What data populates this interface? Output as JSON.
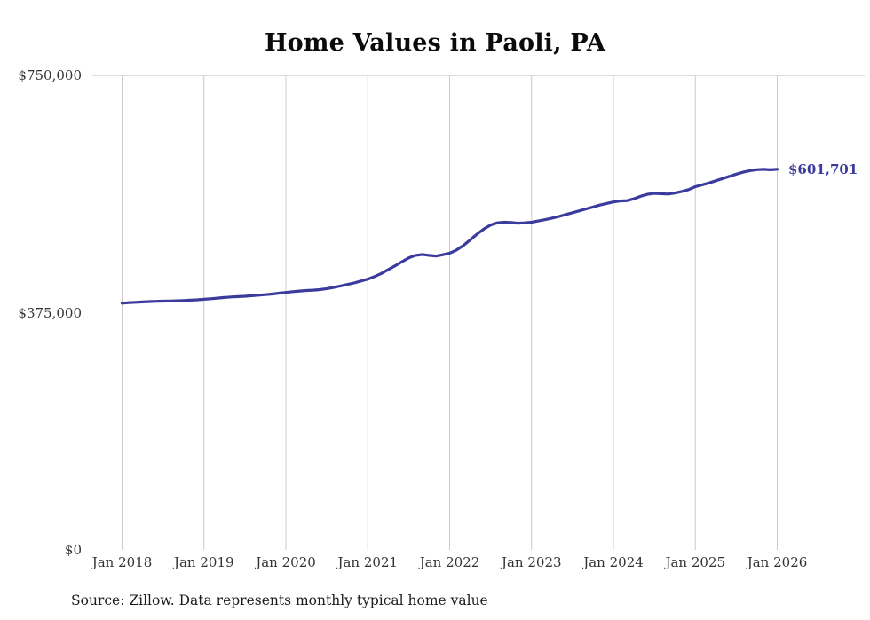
{
  "chart_data": {
    "type": "line",
    "title": "Home Values in Paoli, PA",
    "source_note": "Source: Zillow. Data represents monthly typical home value",
    "frequency": "monthly",
    "grid": "vertical",
    "legend": "none",
    "ylim": [
      0,
      750000
    ],
    "y_ticks": [
      {
        "label": "$0",
        "value": 0
      },
      {
        "label": "$375,000",
        "value": 375000
      },
      {
        "label": "$750,000",
        "value": 750000
      }
    ],
    "x_ticks": [
      "Jan 2018",
      "Jan 2019",
      "Jan 2020",
      "Jan 2021",
      "Jan 2022",
      "Jan 2023",
      "Jan 2024",
      "Jan 2025",
      "Jan 2026"
    ],
    "end_label": "$601,701",
    "end_value": 601701,
    "colors": {
      "line": "#3b3b9d",
      "gridline": "#cccccc",
      "top_line": "#bbbbbb",
      "tick_text": "#333333"
    },
    "series": [
      {
        "name": "Typical home value",
        "color": "#3b3b9d",
        "x_start": "Jan 2018",
        "x_end": "Jan 2026",
        "values": [
          390000,
          390800,
          391400,
          392000,
          392500,
          393000,
          393200,
          393500,
          393800,
          394200,
          394700,
          395300,
          396100,
          397000,
          398000,
          399000,
          399800,
          400400,
          401000,
          401800,
          402600,
          403500,
          404500,
          405800,
          407000,
          408200,
          409200,
          410000,
          410600,
          411500,
          413000,
          415000,
          417200,
          419600,
          422000,
          425000,
          428000,
          432000,
          437000,
          443000,
          449000,
          455500,
          461500,
          465500,
          467000,
          465500,
          464500,
          466500,
          469000,
          474000,
          481000,
          490000,
          499000,
          507000,
          513500,
          517000,
          518000,
          517500,
          516500,
          517000,
          518000,
          520000,
          522000,
          524500,
          527000,
          530000,
          533000,
          536000,
          539000,
          542000,
          545000,
          547500,
          550000,
          551500,
          552000,
          555000,
          559000,
          562000,
          563500,
          563000,
          562500,
          564000,
          566500,
          569500,
          574000,
          577000,
          580000,
          583500,
          587000,
          590500,
          594000,
          597000,
          599500,
          601000,
          601500,
          600800,
          601701
        ]
      }
    ]
  }
}
